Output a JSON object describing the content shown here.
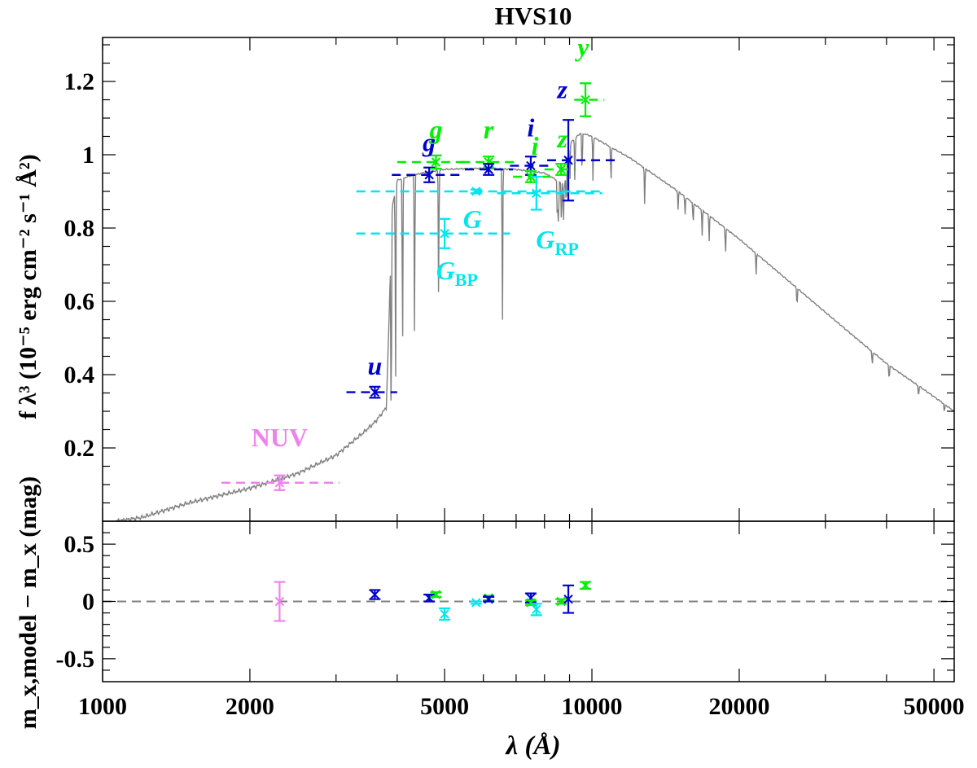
{
  "chart_data": [
    {
      "type": "line",
      "title": "HVS10",
      "xlabel": "λ (Å)",
      "ylabel": "f λ³ (10⁻⁵ erg cm⁻² s⁻¹ Å²)",
      "xscale": "log",
      "xlim": [
        1000,
        55000
      ],
      "ylim": [
        0,
        1.32
      ],
      "xticks": [
        {
          "value": 1000,
          "label": "1000"
        },
        {
          "value": 2000,
          "label": "2000"
        },
        {
          "value": 5000,
          "label": "5000"
        },
        {
          "value": 10000,
          "label": "10000"
        },
        {
          "value": 20000,
          "label": "20000"
        },
        {
          "value": 50000,
          "label": "50000"
        }
      ],
      "yticks": [
        {
          "value": 0.2,
          "label": "0.2"
        },
        {
          "value": 0.4,
          "label": "0.4"
        },
        {
          "value": 0.6,
          "label": "0.6"
        },
        {
          "value": 0.8,
          "label": "0.8"
        },
        {
          "value": 1.0,
          "label": "1"
        },
        {
          "value": 1.2,
          "label": "1.2"
        }
      ],
      "colors": {
        "model": "#808080",
        "GALEX": "#ee82ee",
        "SDSS": "#0000cd",
        "PanSTARRS": "#00ee00",
        "Gaia": "#00e5ee"
      },
      "model_continuum": [
        [
          1060,
          0.0
        ],
        [
          1200,
          0.01
        ],
        [
          1500,
          0.05
        ],
        [
          2000,
          0.09
        ],
        [
          2500,
          0.13
        ],
        [
          3000,
          0.18
        ],
        [
          3400,
          0.24
        ],
        [
          3600,
          0.27
        ],
        [
          3750,
          0.3
        ],
        [
          3800,
          0.31
        ],
        [
          3850,
          0.55
        ],
        [
          3900,
          0.85
        ],
        [
          4000,
          0.93
        ],
        [
          4200,
          0.94
        ],
        [
          4500,
          0.95
        ],
        [
          5000,
          0.96
        ],
        [
          5500,
          0.962
        ],
        [
          6000,
          0.963
        ],
        [
          7000,
          0.96
        ],
        [
          8000,
          0.95
        ],
        [
          8500,
          0.93
        ],
        [
          8800,
          0.92
        ],
        [
          9000,
          1.03
        ],
        [
          9500,
          1.06
        ],
        [
          10000,
          1.05
        ],
        [
          12000,
          0.99
        ],
        [
          15000,
          0.9
        ],
        [
          20000,
          0.77
        ],
        [
          30000,
          0.57
        ],
        [
          40000,
          0.43
        ],
        [
          50000,
          0.34
        ],
        [
          55000,
          0.3
        ]
      ],
      "absorption_lines": [
        {
          "wl": 3889,
          "depth": 0.58
        },
        {
          "wl": 3970,
          "depth": 0.52
        },
        {
          "wl": 4102,
          "depth": 0.48
        },
        {
          "wl": 4340,
          "depth": 0.44
        },
        {
          "wl": 4861,
          "depth": 0.35
        },
        {
          "wl": 6563,
          "depth": 0.43
        },
        {
          "wl": 8500,
          "depth": 0.12
        },
        {
          "wl": 8545,
          "depth": 0.13
        },
        {
          "wl": 8665,
          "depth": 0.12
        },
        {
          "wl": 8750,
          "depth": 0.1
        },
        {
          "wl": 8863,
          "depth": 0.1
        },
        {
          "wl": 9015,
          "depth": 0.11
        },
        {
          "wl": 9229,
          "depth": 0.12
        },
        {
          "wl": 9546,
          "depth": 0.12
        },
        {
          "wl": 10049,
          "depth": 0.12
        },
        {
          "wl": 10938,
          "depth": 0.1
        },
        {
          "wl": 12818,
          "depth": 0.1
        },
        {
          "wl": 15000,
          "depth": 0.05
        },
        {
          "wl": 15500,
          "depth": 0.05
        },
        {
          "wl": 16100,
          "depth": 0.06
        },
        {
          "wl": 16800,
          "depth": 0.07
        },
        {
          "wl": 17360,
          "depth": 0.07
        },
        {
          "wl": 18750,
          "depth": 0.07
        },
        {
          "wl": 21655,
          "depth": 0.06
        },
        {
          "wl": 26250,
          "depth": 0.05
        },
        {
          "wl": 37400,
          "depth": 0.04
        },
        {
          "wl": 40500,
          "depth": 0.04
        },
        {
          "wl": 46500,
          "depth": 0.03
        },
        {
          "wl": 52500,
          "depth": 0.025
        }
      ],
      "photometry": [
        {
          "band": "NUV",
          "system": "GALEX",
          "wl": 2300,
          "wl_lo": 1750,
          "wl_hi": 3050,
          "value": 0.105,
          "err": 0.02
        },
        {
          "band": "u",
          "system": "SDSS",
          "wl": 3600,
          "wl_lo": 3150,
          "wl_hi": 4000,
          "value": 0.352,
          "err": 0.015
        },
        {
          "band": "g",
          "system": "SDSS",
          "wl": 4650,
          "wl_lo": 3900,
          "wl_hi": 5500,
          "value": 0.945,
          "err": 0.02
        },
        {
          "band": "g",
          "system": "PanSTARRS",
          "wl": 4800,
          "wl_lo": 4000,
          "wl_hi": 5500,
          "value": 0.98,
          "err": 0.018
        },
        {
          "band": "r",
          "system": "PanSTARRS",
          "wl": 6150,
          "wl_lo": 5400,
          "wl_hi": 7000,
          "value": 0.98,
          "err": 0.015
        },
        {
          "band": "r",
          "system": "SDSS",
          "wl": 6150,
          "wl_lo": 5500,
          "wl_hi": 6900,
          "value": 0.96,
          "err": 0.015
        },
        {
          "band": "i",
          "system": "SDSS",
          "wl": 7500,
          "wl_lo": 6800,
          "wl_hi": 8300,
          "value": 0.97,
          "err": 0.025
        },
        {
          "band": "i",
          "system": "PanSTARRS",
          "wl": 7500,
          "wl_lo": 6900,
          "wl_hi": 8200,
          "value": 0.94,
          "err": 0.015
        },
        {
          "band": "z",
          "system": "SDSS",
          "wl": 8950,
          "wl_lo": 8100,
          "wl_hi": 11200,
          "value": 0.985,
          "err": 0.11
        },
        {
          "band": "z",
          "system": "PanSTARRS",
          "wl": 8650,
          "wl_lo": 8000,
          "wl_hi": 9200,
          "value": 0.96,
          "err": 0.015
        },
        {
          "band": "y",
          "system": "PanSTARRS",
          "wl": 9700,
          "wl_lo": 9200,
          "wl_hi": 10600,
          "value": 1.15,
          "err": 0.045
        },
        {
          "band": "G",
          "system": "Gaia",
          "wl": 5800,
          "wl_lo": 3300,
          "wl_hi": 10500,
          "value": 0.9,
          "err": 0.005
        },
        {
          "band": "G_BP",
          "system": "Gaia",
          "wl": 5000,
          "wl_lo": 3300,
          "wl_hi": 6800,
          "value": 0.785,
          "err": 0.04
        },
        {
          "band": "G_RP",
          "system": "Gaia",
          "wl": 7700,
          "wl_lo": 6400,
          "wl_hi": 10500,
          "value": 0.895,
          "err": 0.045
        }
      ],
      "band_labels": [
        {
          "text": "NUV",
          "system": "GALEX",
          "wl": 2300,
          "y": 0.205
        },
        {
          "text": "u",
          "system": "SDSS",
          "wl": 3600,
          "y": 0.4
        },
        {
          "text": "g",
          "system": "SDSS",
          "wl": 4650,
          "y": 1.01
        },
        {
          "text": "g",
          "system": "PanSTARRS",
          "wl": 4800,
          "y": 1.045
        },
        {
          "text": "r",
          "system": "PanSTARRS",
          "wl": 6150,
          "y": 1.045
        },
        {
          "text": "i",
          "system": "SDSS",
          "wl": 7500,
          "y": 1.05
        },
        {
          "text": "i",
          "system": "PanSTARRS",
          "wl": 7650,
          "y": 1.0
        },
        {
          "text": "z",
          "system": "PanSTARRS",
          "wl": 8700,
          "y": 1.02
        },
        {
          "text": "z",
          "system": "SDSS",
          "wl": 8700,
          "y": 1.155
        },
        {
          "text": "y",
          "system": "PanSTARRS",
          "wl": 9600,
          "y": 1.27
        },
        {
          "text": "G",
          "system": "Gaia",
          "wl": 5700,
          "y": 0.8
        },
        {
          "text": "G",
          "sub": "BP",
          "system": "Gaia",
          "wl": 5300,
          "y": 0.66
        },
        {
          "text": "G",
          "sub": "RP",
          "system": "Gaia",
          "wl": 8500,
          "y": 0.745
        }
      ]
    },
    {
      "type": "scatter",
      "xlabel": "λ (Å)",
      "ylabel": "m_x,model − m_x (mag)",
      "xscale": "log",
      "xlim": [
        1000,
        55000
      ],
      "ylim": [
        -0.7,
        0.7
      ],
      "reference_line": 0,
      "yticks": [
        {
          "value": 0.5,
          "label": "0.5"
        },
        {
          "value": 0,
          "label": "0"
        },
        {
          "value": -0.5,
          "label": "-0.5"
        }
      ],
      "residuals": [
        {
          "band": "NUV",
          "system": "GALEX",
          "wl": 2300,
          "value": 0.0,
          "err": 0.17
        },
        {
          "band": "u",
          "system": "SDSS",
          "wl": 3600,
          "value": 0.06,
          "err": 0.04
        },
        {
          "band": "g",
          "system": "SDSS",
          "wl": 4650,
          "value": 0.03,
          "err": 0.03
        },
        {
          "band": "g",
          "system": "PanSTARRS",
          "wl": 4800,
          "value": 0.06,
          "err": 0.02
        },
        {
          "band": "G_BP",
          "system": "Gaia",
          "wl": 5000,
          "value": -0.11,
          "err": 0.05
        },
        {
          "band": "G",
          "system": "Gaia",
          "wl": 5800,
          "value": -0.01,
          "err": 0.01
        },
        {
          "band": "r",
          "system": "PanSTARRS",
          "wl": 6150,
          "value": 0.03,
          "err": 0.02
        },
        {
          "band": "r",
          "system": "SDSS",
          "wl": 6150,
          "value": 0.02,
          "err": 0.02
        },
        {
          "band": "i",
          "system": "SDSS",
          "wl": 7500,
          "value": 0.03,
          "err": 0.04
        },
        {
          "band": "i",
          "system": "PanSTARRS",
          "wl": 7500,
          "value": -0.01,
          "err": 0.02
        },
        {
          "band": "G_RP",
          "system": "Gaia",
          "wl": 7700,
          "value": -0.07,
          "err": 0.05
        },
        {
          "band": "z",
          "system": "PanSTARRS",
          "wl": 8650,
          "value": 0.0,
          "err": 0.02
        },
        {
          "band": "z",
          "system": "SDSS",
          "wl": 8950,
          "value": 0.02,
          "err": 0.12
        },
        {
          "band": "y",
          "system": "PanSTARRS",
          "wl": 9700,
          "value": 0.14,
          "err": 0.03
        }
      ]
    }
  ]
}
